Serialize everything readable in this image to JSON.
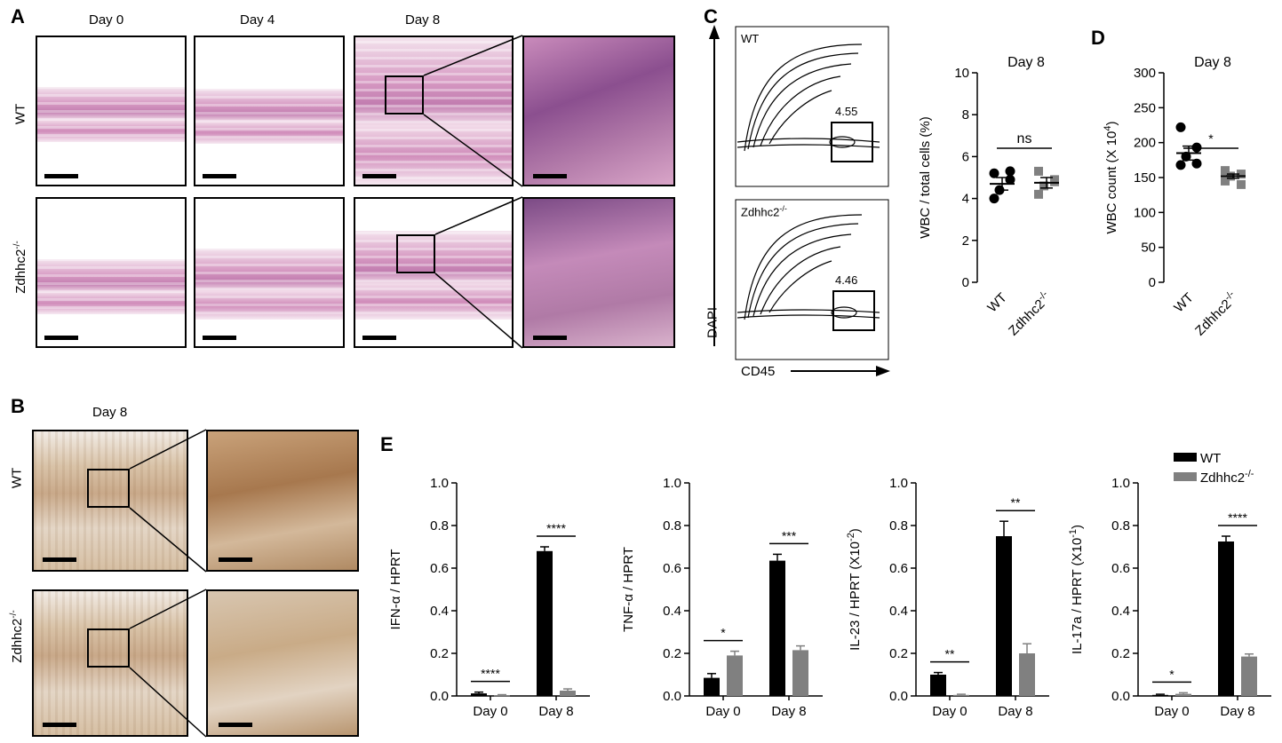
{
  "panels": {
    "A": {
      "label": "A",
      "columns": [
        "Day 0",
        "Day 4",
        "Day 8"
      ],
      "rows": [
        "WT",
        "Zdhhc2"
      ],
      "row_superscript": "-/-"
    },
    "B": {
      "label": "B",
      "column": "Day 8",
      "rows": [
        "WT",
        "Zdhhc2"
      ],
      "row_superscript": "-/-"
    },
    "C": {
      "label": "C",
      "flow": {
        "ylabel": "DAPI",
        "xlabel": "CD45",
        "top_label": "WT",
        "top_gate": "4.55",
        "bottom_label": "Zdhhc2",
        "bottom_superscript": "-/-",
        "bottom_gate": "4.46"
      }
    },
    "D": {
      "label": "D"
    },
    "E": {
      "label": "E"
    }
  },
  "chart_data": [
    {
      "id": "C-scatter",
      "type": "scatter",
      "title": "Day 8",
      "ylabel": "WBC / total cells (%)",
      "ylim": [
        0,
        10
      ],
      "yticks": [
        0,
        2,
        4,
        6,
        8,
        10
      ],
      "categories": [
        "WT",
        "Zdhhc2-/-"
      ],
      "significance": "ns",
      "series": [
        {
          "name": "WT",
          "color": "#000000",
          "marker": "circle",
          "mean": 4.7,
          "sem": 0.3,
          "values": [
            5.2,
            4.9,
            4.4,
            4.0,
            5.3
          ]
        },
        {
          "name": "Zdhhc2-/-",
          "color": "#808080",
          "marker": "square",
          "mean": 4.75,
          "sem": 0.25,
          "values": [
            5.3,
            4.9,
            4.6,
            4.2,
            4.8
          ]
        }
      ]
    },
    {
      "id": "D-scatter",
      "type": "scatter",
      "title": "Day 8",
      "ylabel": "WBC count (X 10",
      "ylabel_sup": "4",
      "ylabel_end": ")",
      "ylim": [
        0,
        300
      ],
      "yticks": [
        0,
        50,
        100,
        150,
        200,
        250,
        300
      ],
      "categories": [
        "WT",
        "Zdhhc2-/-"
      ],
      "significance": "*",
      "series": [
        {
          "name": "WT",
          "color": "#000000",
          "marker": "circle",
          "mean": 185,
          "sem": 10,
          "values": [
            222,
            193,
            180,
            168,
            170
          ]
        },
        {
          "name": "Zdhhc2-/-",
          "color": "#808080",
          "marker": "square",
          "mean": 152,
          "sem": 3,
          "values": [
            160,
            155,
            152,
            145,
            140
          ]
        }
      ]
    },
    {
      "id": "E1",
      "type": "bar",
      "ylabel": "IFN-α / HPRT",
      "ylim": [
        0,
        1.0
      ],
      "yticks": [
        "0.0",
        "0.2",
        "0.4",
        "0.6",
        "0.8",
        "1.0"
      ],
      "categories": [
        "Day 0",
        "Day 8"
      ],
      "series": [
        {
          "name": "WT",
          "color": "#000000",
          "values": [
            0.012,
            0.68
          ],
          "err": [
            0.006,
            0.02
          ]
        },
        {
          "name": "Zdhhc2-/-",
          "color": "#808080",
          "values": [
            0.003,
            0.025
          ],
          "err": [
            0.003,
            0.008
          ]
        }
      ],
      "significance": [
        "****",
        "****"
      ]
    },
    {
      "id": "E2",
      "type": "bar",
      "ylabel": "TNF-α / HPRT",
      "ylim": [
        0,
        1.0
      ],
      "yticks": [
        "0.0",
        "0.2",
        "0.4",
        "0.6",
        "0.8",
        "1.0"
      ],
      "categories": [
        "Day 0",
        "Day 8"
      ],
      "series": [
        {
          "name": "WT",
          "color": "#000000",
          "values": [
            0.085,
            0.635
          ],
          "err": [
            0.02,
            0.03
          ]
        },
        {
          "name": "Zdhhc2-/-",
          "color": "#808080",
          "values": [
            0.19,
            0.215
          ],
          "err": [
            0.02,
            0.02
          ]
        }
      ],
      "significance": [
        "*",
        "***"
      ]
    },
    {
      "id": "E3",
      "type": "bar",
      "ylabel": "IL-23 / HPRT (X10",
      "ylabel_sup": "-2",
      "ylabel_end": ")",
      "ylim": [
        0,
        1.0
      ],
      "yticks": [
        "0.0",
        "0.2",
        "0.4",
        "0.6",
        "0.8",
        "1.0"
      ],
      "categories": [
        "Day 0",
        "Day 8"
      ],
      "series": [
        {
          "name": "WT",
          "color": "#000000",
          "values": [
            0.1,
            0.75
          ],
          "err": [
            0.01,
            0.07
          ]
        },
        {
          "name": "Zdhhc2-/-",
          "color": "#808080",
          "values": [
            0.005,
            0.2
          ],
          "err": [
            0.003,
            0.045
          ]
        }
      ],
      "significance": [
        "**",
        "**"
      ]
    },
    {
      "id": "E4",
      "type": "bar",
      "ylabel": "IL-17a / HPRT (X10",
      "ylabel_sup": "-1",
      "ylabel_end": ")",
      "ylim": [
        0,
        1.0
      ],
      "yticks": [
        "0.0",
        "0.2",
        "0.4",
        "0.6",
        "0.8",
        "1.0"
      ],
      "categories": [
        "Day 0",
        "Day 8"
      ],
      "series": [
        {
          "name": "WT",
          "color": "#000000",
          "values": [
            0.005,
            0.725
          ],
          "err": [
            0.003,
            0.025
          ]
        },
        {
          "name": "Zdhhc2-/-",
          "color": "#808080",
          "values": [
            0.01,
            0.185
          ],
          "err": [
            0.005,
            0.012
          ]
        }
      ],
      "significance": [
        "*",
        "****"
      ],
      "legend": [
        "WT",
        "Zdhhc2-/-"
      ]
    }
  ]
}
